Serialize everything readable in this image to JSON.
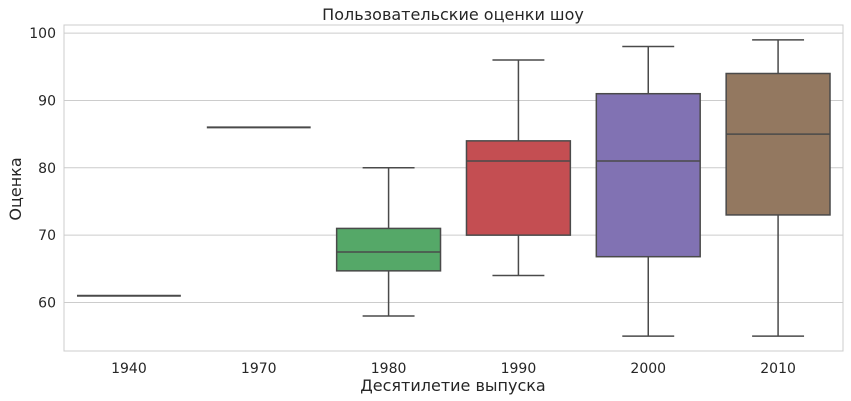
{
  "chart_data": {
    "type": "box",
    "title": "Пользовательские оценки шоу",
    "xlabel": "Десятилетие выпуска",
    "ylabel": "Оценка",
    "ylim": [
      52.8,
      101.2
    ],
    "yticks": [
      60,
      70,
      80,
      90,
      100
    ],
    "grid": "horizontal",
    "categories": [
      "1940",
      "1970",
      "1980",
      "1990",
      "2000",
      "2010"
    ],
    "boxes": [
      {
        "category": "1940",
        "whisker_low": 61,
        "q1": 61,
        "median": 61,
        "q3": 61,
        "whisker_high": 61,
        "color": "#4c72b0"
      },
      {
        "category": "1970",
        "whisker_low": 86,
        "q1": 86,
        "median": 86,
        "q3": 86,
        "whisker_high": 86,
        "color": "#dd8452"
      },
      {
        "category": "1980",
        "whisker_low": 58,
        "q1": 64.7,
        "median": 67.5,
        "q3": 71,
        "whisker_high": 80,
        "color": "#55a868"
      },
      {
        "category": "1990",
        "whisker_low": 64,
        "q1": 70,
        "median": 81,
        "q3": 84,
        "whisker_high": 96,
        "color": "#c44e52"
      },
      {
        "category": "2000",
        "whisker_low": 55,
        "q1": 66.8,
        "median": 81,
        "q3": 91,
        "whisker_high": 98,
        "color": "#8172b3"
      },
      {
        "category": "2010",
        "whisker_low": 55,
        "q1": 73,
        "median": 85,
        "q3": 94,
        "whisker_high": 99,
        "color": "#937860"
      }
    ]
  }
}
